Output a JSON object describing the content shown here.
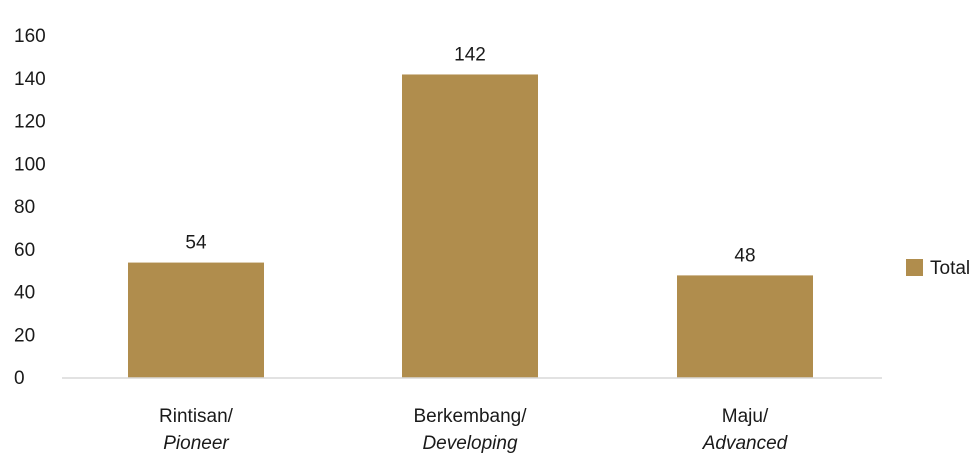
{
  "chart_data": {
    "type": "bar",
    "title": "",
    "xlabel": "",
    "ylabel": "",
    "categories": [
      {
        "line1": "Rintisan/",
        "line2": "Pioneer"
      },
      {
        "line1": "Berkembang/",
        "line2": "Developing"
      },
      {
        "line1": "Maju/",
        "line2": "Advanced"
      }
    ],
    "series": [
      {
        "name": "Total",
        "values": [
          54,
          142,
          48
        ],
        "color": "#B08D4D"
      }
    ],
    "ylim": [
      0,
      160
    ],
    "yticks": [
      0,
      20,
      40,
      60,
      80,
      100,
      120,
      140,
      160
    ],
    "grid": false,
    "legend": {
      "position": "right",
      "items": [
        "Total"
      ]
    },
    "data_labels": [
      "54",
      "142",
      "48"
    ]
  }
}
